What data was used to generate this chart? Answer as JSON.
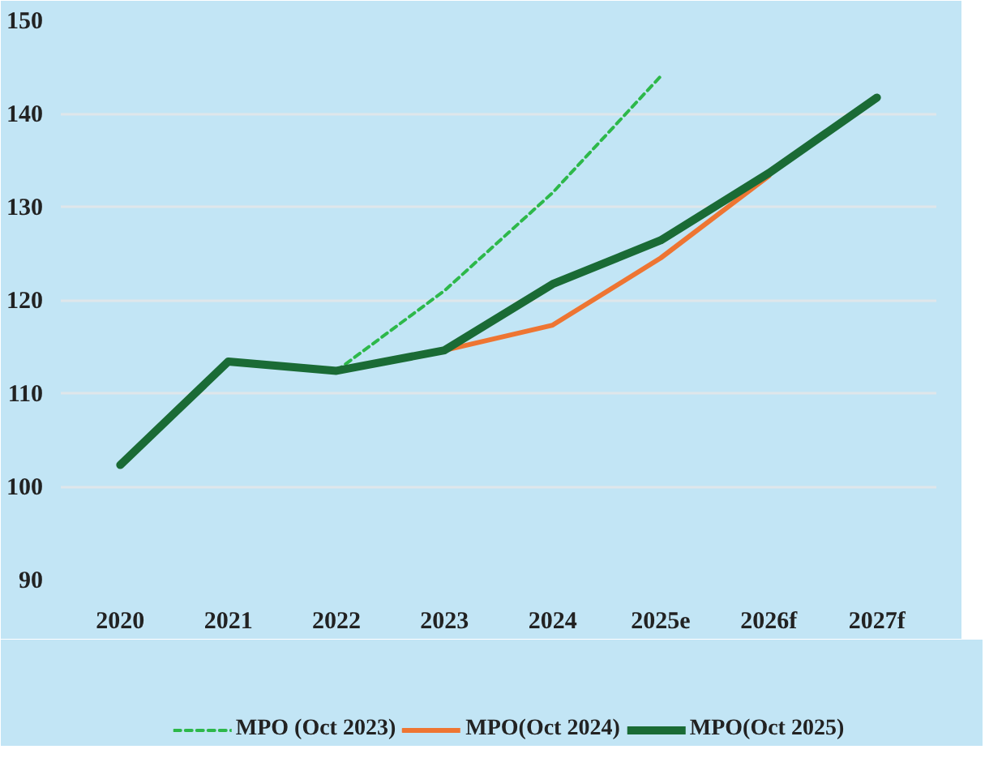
{
  "chart_data": {
    "type": "line",
    "categories": [
      "2020",
      "2021",
      "2022",
      "2023",
      "2024",
      "2025e",
      "2026f",
      "2027f"
    ],
    "series": [
      {
        "name": "MPO (Oct 2023)",
        "color": "#2db84a",
        "line_style": "dashed",
        "values": [
          null,
          null,
          112.4,
          121.0,
          131.5,
          144.0,
          null,
          null
        ]
      },
      {
        "name": "MPO(Oct 2024)",
        "color": "#ee7532",
        "line_style": "solid",
        "values": [
          null,
          null,
          null,
          114.6,
          117.3,
          124.5,
          133.3,
          null
        ]
      },
      {
        "name": "MPO(Oct 2025)",
        "color": "#1a6b35",
        "line_style": "solid",
        "values": [
          102.3,
          113.4,
          112.4,
          114.6,
          121.7,
          126.4,
          133.6,
          141.7
        ]
      }
    ],
    "ylim": [
      90,
      150
    ],
    "yticks": [
      90,
      100,
      110,
      120,
      130,
      140,
      150
    ],
    "grid": "y",
    "legend": "bottom",
    "marker": "none"
  }
}
